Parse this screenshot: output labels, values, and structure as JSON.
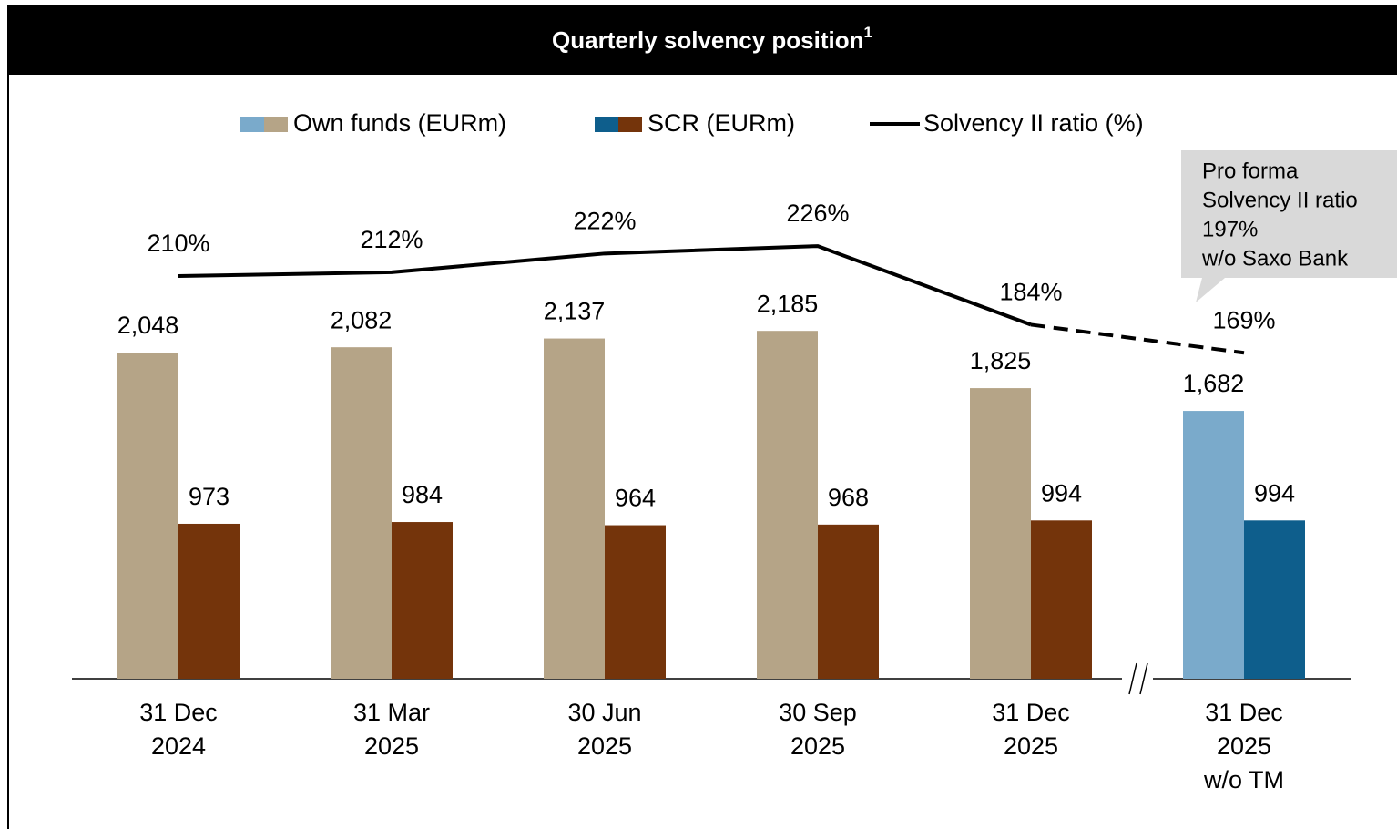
{
  "chart_data": {
    "type": "bar_line",
    "title": "Quarterly solvency position",
    "title_footnote": "1",
    "categories": [
      [
        "31 Dec",
        "2024"
      ],
      [
        "31 Mar",
        "2025"
      ],
      [
        "30 Jun",
        "2025"
      ],
      [
        "30 Sep",
        "2025"
      ],
      [
        "31 Dec",
        "2025"
      ],
      [
        "31 Dec",
        "2025",
        "w/o TM"
      ]
    ],
    "series": [
      {
        "name": "Own funds (EURm)",
        "colors": [
          "#b5a487",
          "#b5a487",
          "#b5a487",
          "#b5a487",
          "#b5a487",
          "#7aaacb"
        ],
        "values": [
          2048,
          2082,
          2137,
          2185,
          1825,
          1682
        ],
        "value_labels": [
          "2,048",
          "2,082",
          "2,137",
          "2,185",
          "1,825",
          "1,682"
        ]
      },
      {
        "name": "SCR (EURm)",
        "colors": [
          "#74340b",
          "#74340b",
          "#74340b",
          "#74340b",
          "#74340b",
          "#0e5e8c"
        ],
        "values": [
          973,
          984,
          964,
          968,
          994,
          994
        ],
        "value_labels": [
          "973",
          "984",
          "964",
          "968",
          "994",
          "994"
        ]
      },
      {
        "name": "Solvency II ratio (%)",
        "type": "line",
        "axis": "y2",
        "color": "#000000",
        "dash_last_segment": true,
        "values": [
          210,
          212,
          222,
          226,
          184,
          169
        ],
        "value_labels": [
          "210%",
          "212%",
          "222%",
          "226%",
          "184%",
          "169%"
        ]
      }
    ],
    "ylim": [
      0,
      4000
    ],
    "y2lim": [
      -5,
      335
    ],
    "annotation": [
      "Pro forma",
      "Solvency II ratio",
      "197%",
      "w/o Saxo Bank"
    ]
  }
}
